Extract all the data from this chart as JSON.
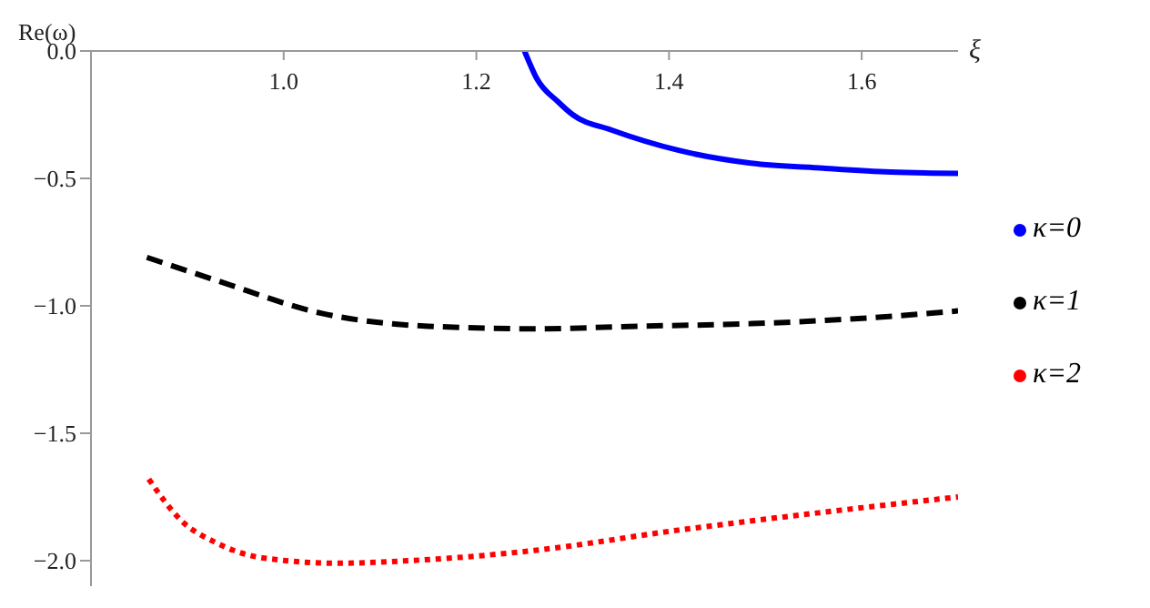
{
  "chart_data": {
    "type": "line",
    "xlabel": "ξ",
    "ylabel": "Re(ω)",
    "xlim": [
      0.8,
      1.7
    ],
    "ylim": [
      -2.1,
      0
    ],
    "xticks": [
      {
        "value": 1.0,
        "label": "1.0"
      },
      1.2,
      1.4,
      1.6
    ],
    "yticks": [
      {
        "value": 0,
        "label": "0.0"
      },
      {
        "value": -0.5,
        "label": "−0.5"
      },
      {
        "value": -1.0,
        "label": "−1.0"
      },
      {
        "value": -1.5,
        "label": "−1.5"
      },
      {
        "value": -2.0,
        "label": "−2.0"
      }
    ],
    "legend": "right",
    "grid": false,
    "marker": "none",
    "series": [
      {
        "name": "κ=0",
        "color": "#0000ff",
        "line_style": "solid",
        "x": [
          1.25,
          1.263,
          1.285,
          1.3,
          1.34,
          1.41,
          1.485,
          1.56,
          1.63,
          1.7
        ],
        "values": [
          0,
          -0.11,
          -0.2,
          -0.25,
          -0.31,
          -0.39,
          -0.44,
          -0.46,
          -0.475,
          -0.48
        ]
      },
      {
        "name": "κ=1",
        "color": "#000000",
        "line_style": "dashed",
        "x": [
          0.858,
          0.93,
          1.04,
          1.15,
          1.26,
          1.37,
          1.485,
          1.596,
          1.7
        ],
        "values": [
          -0.81,
          -0.9,
          -1.03,
          -1.08,
          -1.09,
          -1.08,
          -1.07,
          -1.05,
          -1.02
        ]
      },
      {
        "name": "κ=2",
        "color": "#ff0000",
        "line_style": "dotted",
        "x": [
          0.86,
          0.893,
          0.93,
          0.98,
          1.055,
          1.13,
          1.26,
          1.41,
          1.56,
          1.7
        ],
        "values": [
          -1.68,
          -1.84,
          -1.93,
          -1.99,
          -2.01,
          -2.0,
          -1.96,
          -1.88,
          -1.81,
          -1.75
        ]
      }
    ]
  }
}
